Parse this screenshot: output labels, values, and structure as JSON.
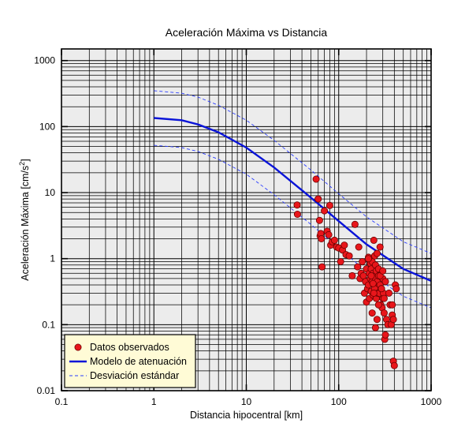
{
  "chart_data": {
    "type": "scatter",
    "title": "Aceleración Máxima vs Distancia",
    "xlabel": "Distancia hipocentral [km]",
    "ylabel": "Aceleración Máxima [cm/s",
    "ylabel_sup": "2",
    "ylabel_end": "]",
    "x_scale": "log",
    "y_scale": "log",
    "xlim": [
      0.1,
      1000
    ],
    "ylim": [
      0.01,
      1500
    ],
    "x_ticks": [
      0.1,
      1,
      10,
      100,
      1000
    ],
    "x_tick_labels": [
      "0.1",
      "1",
      "10",
      "100",
      "1000"
    ],
    "y_ticks": [
      0.01,
      0.1,
      1,
      10,
      100,
      1000
    ],
    "y_tick_labels": [
      "0.01",
      "0.1",
      "1",
      "10",
      "100",
      "1000"
    ],
    "grid": true,
    "legend_position": "bottom-left",
    "colors": {
      "plot_background": "#ececec",
      "grid": "#000000",
      "points_fill": "#e8161b",
      "points_edge": "#6b0000",
      "model": "#0a14d8",
      "deviation": "#2a3cff",
      "legend_background": "#fffbd6"
    },
    "series": [
      {
        "name": "Datos observados",
        "kind": "points",
        "x": [
          35.5,
          35.8,
          57,
          60,
          62,
          63,
          64,
          65,
          66,
          70,
          75,
          78,
          80,
          82,
          85,
          90,
          95,
          100,
          105,
          110,
          115,
          120,
          130,
          140,
          150,
          160,
          165,
          170,
          175,
          180,
          185,
          190,
          195,
          200,
          200,
          205,
          210,
          210,
          215,
          215,
          220,
          220,
          225,
          225,
          230,
          230,
          235,
          235,
          240,
          240,
          245,
          245,
          250,
          250,
          255,
          255,
          260,
          260,
          265,
          270,
          270,
          275,
          280,
          280,
          285,
          290,
          295,
          300,
          300,
          305,
          310,
          315,
          320,
          330,
          340,
          350,
          360,
          370,
          380,
          390,
          400,
          410,
          380,
          390,
          420,
          230,
          250,
          270,
          290,
          310,
          240,
          260,
          280,
          300,
          320,
          210,
          225,
          235
        ],
        "y": [
          6.5,
          4.7,
          16,
          8,
          3.8,
          2.2,
          2.4,
          2.0,
          0.75,
          5.3,
          2.6,
          2.3,
          6.4,
          1.6,
          1.8,
          1.9,
          1.5,
          1.45,
          0.9,
          1.35,
          1.6,
          1.15,
          1.1,
          0.55,
          3.3,
          0.75,
          1.5,
          0.5,
          0.6,
          0.9,
          0.55,
          0.3,
          0.45,
          0.7,
          0.22,
          0.35,
          1.05,
          0.4,
          0.6,
          0.25,
          0.85,
          0.5,
          0.32,
          0.7,
          0.45,
          0.9,
          0.28,
          0.6,
          1.9,
          0.4,
          1.1,
          0.35,
          0.8,
          0.5,
          0.25,
          0.65,
          1.2,
          0.45,
          0.3,
          0.7,
          0.55,
          0.3,
          1.5,
          0.4,
          0.2,
          0.35,
          0.18,
          0.5,
          0.25,
          0.3,
          0.15,
          0.06,
          0.07,
          0.12,
          0.1,
          0.3,
          0.2,
          0.1,
          0.14,
          0.028,
          0.024,
          0.4,
          0.2,
          0.12,
          0.35,
          0.15,
          0.09,
          0.2,
          0.35,
          0.25,
          0.3,
          0.12,
          0.55,
          0.65,
          0.45,
          1.0,
          0.55,
          0.42
        ]
      },
      {
        "name": "Modelo de atenuación",
        "kind": "solid-line",
        "x": [
          1,
          2,
          3,
          5,
          10,
          20,
          50,
          100,
          200,
          500,
          1000
        ],
        "y": [
          135,
          125,
          108,
          82,
          48,
          24,
          8.4,
          3.7,
          1.65,
          0.7,
          0.46
        ]
      },
      {
        "name": "Desviación estándar",
        "kind": "dashed-line",
        "x": [
          1,
          2,
          3,
          5,
          10,
          20,
          50,
          100,
          200,
          500,
          1000
        ],
        "y": [
          350,
          320,
          280,
          210,
          125,
          62,
          22,
          9.6,
          4.3,
          1.8,
          1.2
        ]
      },
      {
        "name": "",
        "kind": "dashed-line",
        "x": [
          1,
          2,
          3,
          5,
          10,
          20,
          50,
          100,
          200,
          500,
          1000
        ],
        "y": [
          52,
          48,
          42,
          32,
          19,
          9.3,
          3.3,
          1.45,
          0.64,
          0.27,
          0.18
        ]
      }
    ]
  }
}
